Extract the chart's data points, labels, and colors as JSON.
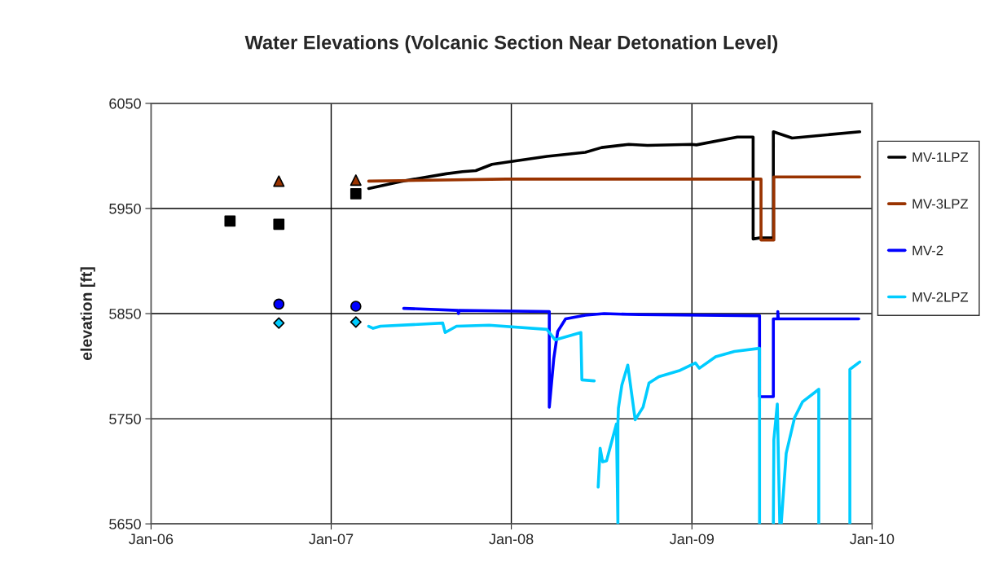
{
  "chart_data": {
    "type": "line",
    "title": "Water Elevations (Volcanic Section Near Detonation Level)",
    "ylabel": "elevation [ft]",
    "xlim": [
      "2006-01-01",
      "2010-01-01"
    ],
    "xticks": [
      {
        "value": "2006-01-01",
        "label": "Jan-06"
      },
      {
        "value": "2007-01-01",
        "label": "Jan-07"
      },
      {
        "value": "2008-01-01",
        "label": "Jan-08"
      },
      {
        "value": "2009-01-01",
        "label": "Jan-09"
      },
      {
        "value": "2010-01-01",
        "label": "Jan-10"
      }
    ],
    "ylim": [
      5650,
      6050
    ],
    "yticks": [
      5650,
      5750,
      5850,
      5950,
      6050
    ],
    "grid": true,
    "legend": "right",
    "series": [
      {
        "name": "MV-1LPZ",
        "color": "#000000",
        "x": [
          "2007-03-18",
          "2007-05-25",
          "2007-08-22",
          "2007-09-24",
          "2007-10-21",
          "2007-11-23",
          "2007-12-21",
          "2008-03-13",
          "2008-05-30",
          "2008-07-02",
          "2008-08-26",
          "2008-10-03",
          "2008-12-31",
          "2009-01-10",
          "2009-04-03",
          "2009-05-05",
          "2009-05-05",
          "2009-05-18",
          "2009-06-15",
          "2009-06-15",
          "2009-07-17",
          "2009-07-23",
          "2009-12-07"
        ],
        "values": [
          5969,
          5976,
          5983,
          5985,
          5986,
          5992,
          5994,
          5999.6,
          6003.5,
          6008,
          6011,
          6010,
          6011,
          6010.5,
          6018,
          6018,
          5921,
          5922,
          5922,
          6023,
          6018,
          6017,
          6023
        ]
      },
      {
        "name": "MV-3LPZ",
        "color": "#993300",
        "x": [
          "2007-03-18",
          "2007-12-21",
          "2009-05-21",
          "2009-05-21",
          "2009-06-16",
          "2009-06-16",
          "2009-12-07"
        ],
        "values": [
          5976,
          5978,
          5978,
          5920,
          5920,
          5980,
          5980
        ]
      },
      {
        "name": "MV-2",
        "color": "#0000ff",
        "x": [
          "2007-05-28",
          "2007-09-15",
          "2007-09-16",
          "2007-09-17",
          "2008-03-18",
          "2008-03-18",
          "2008-03-27",
          "2008-04-04",
          "2008-04-20",
          "2008-05-30",
          "2008-07-07",
          "2008-09-16",
          "2009-05-18",
          "2009-05-18",
          "2009-06-15",
          "2009-06-15",
          "2009-06-24",
          "2009-06-24",
          "2009-06-25",
          "2009-12-05"
        ],
        "values": [
          5855,
          5853,
          5850,
          5853,
          5852,
          5761,
          5807,
          5833,
          5845,
          5848.5,
          5850,
          5849,
          5848,
          5771,
          5771,
          5845,
          5845,
          5852,
          5845,
          5845
        ]
      },
      {
        "name": "MV-2LPZ",
        "color": "#00ccff",
        "x": [
          "2007-03-18",
          "2007-03-27",
          "2007-04-11",
          "2007-08-15",
          "2007-08-20",
          "2007-09-12",
          "2007-11-17",
          "2008-03-13",
          "2008-03-30",
          "2008-05-21",
          "2008-05-23",
          "2008-06-17",
          "2008-06-20",
          "2008-06-25",
          "2008-06-29",
          "2008-07-04",
          "2008-07-12",
          "2008-08-01",
          "2008-08-04",
          "2008-08-04",
          "2008-08-05",
          "2008-08-12",
          "2008-08-24",
          "2008-09-08",
          "2008-09-24",
          "2008-10-06",
          "2008-10-26",
          "2008-12-08",
          "2009-01-08",
          "2009-01-16",
          "2009-02-18",
          "2009-03-28",
          "2009-05-18",
          "2009-05-18",
          "2009-06-01",
          "2009-06-15",
          "2009-06-16",
          "2009-06-23",
          "2009-06-28",
          "2009-07-01",
          "2009-07-11",
          "2009-07-28",
          "2009-08-13",
          "2009-09-15",
          "2009-09-15",
          "2009-10-15",
          "2009-11-17",
          "2009-11-17",
          "2009-12-07"
        ],
        "values": [
          5838,
          5836,
          5838,
          5841,
          5832,
          5838,
          5839,
          5835,
          5825,
          5832,
          5787,
          5786,
          null,
          5685,
          5722,
          5709,
          5710,
          5745,
          5650,
          5745,
          5760,
          5782,
          5801,
          5749,
          5761,
          5784,
          5790,
          5796,
          5803,
          5798,
          5809,
          5814,
          5817,
          5650,
          null,
          5650,
          5730,
          5764,
          5650,
          5650,
          5717,
          5751,
          5766,
          5778,
          5650,
          null,
          5650,
          5797,
          5804
        ]
      },
      {
        "type": "scatter",
        "marker": "square",
        "color": "#000000",
        "x": [
          "2006-06-10",
          "2006-09-17",
          "2007-02-20"
        ],
        "values": [
          5938,
          5935,
          5964
        ]
      },
      {
        "type": "scatter",
        "marker": "triangle",
        "color": "#993300",
        "x": [
          "2006-09-17",
          "2007-02-20"
        ],
        "values": [
          5976,
          5977
        ]
      },
      {
        "type": "scatter",
        "marker": "circle",
        "color": "#0000ff",
        "x": [
          "2006-09-17",
          "2007-02-20"
        ],
        "values": [
          5859,
          5857
        ]
      },
      {
        "type": "scatter",
        "marker": "diamond",
        "color": "#00ccff",
        "x": [
          "2006-09-17",
          "2007-02-20"
        ],
        "values": [
          5841,
          5842
        ]
      }
    ]
  }
}
